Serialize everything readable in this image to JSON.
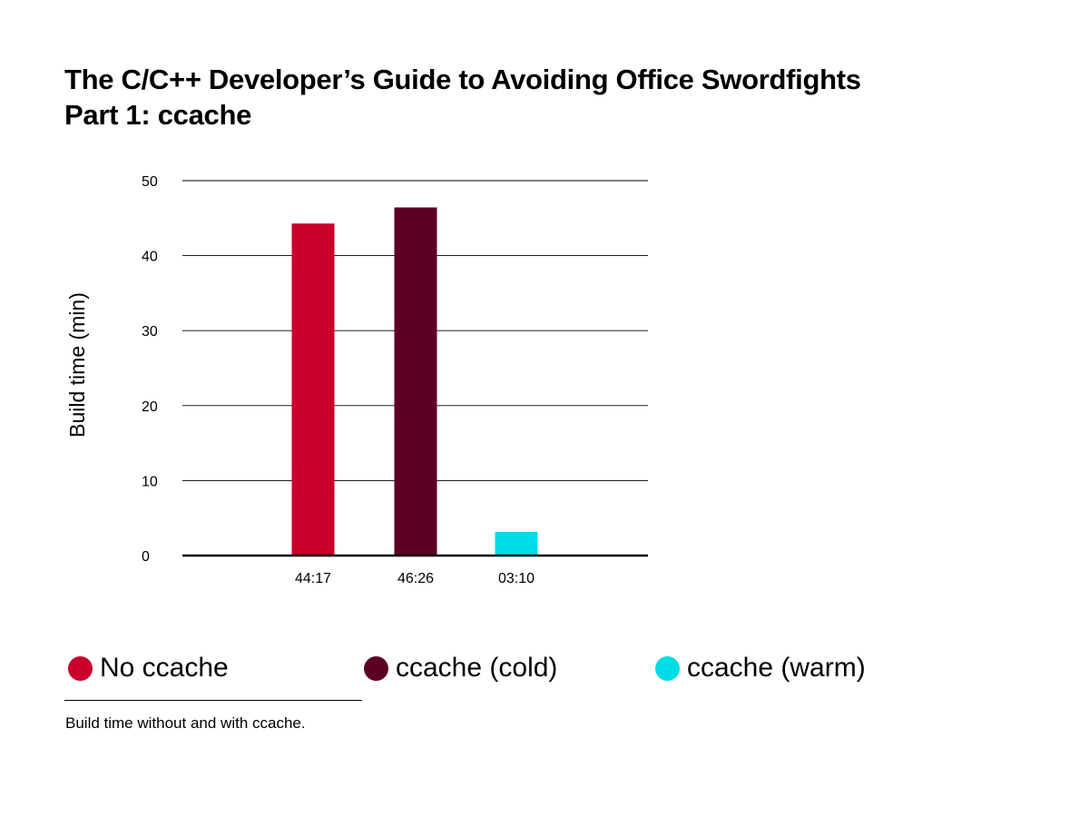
{
  "header": {
    "title_line1": "The C/C++ Developer’s Guide to Avoiding Office Swordfights",
    "title_line2": "Part 1: ccache"
  },
  "chart_data": {
    "type": "bar",
    "ylabel": "Build time (min)",
    "xlabel": "",
    "ylim": [
      0,
      50
    ],
    "yticks": [
      0,
      10,
      20,
      30,
      40,
      50
    ],
    "grid": true,
    "categories": [
      "No ccache",
      "ccache (cold)",
      "ccache (warm)"
    ],
    "values": [
      44.28,
      46.43,
      3.17
    ],
    "data_labels": [
      "44:17",
      "46:26",
      "03:10"
    ],
    "colors": [
      "#c8002a",
      "#5c0026",
      "#00dde6"
    ]
  },
  "legend": {
    "placement": "bottom",
    "items": [
      {
        "label": "No ccache",
        "color": "#c8002a"
      },
      {
        "label": "ccache (cold)",
        "color": "#5c0026"
      },
      {
        "label": "ccache (warm)",
        "color": "#00dde6"
      }
    ]
  },
  "footer": {
    "caption": "Build time without and with ccache."
  }
}
